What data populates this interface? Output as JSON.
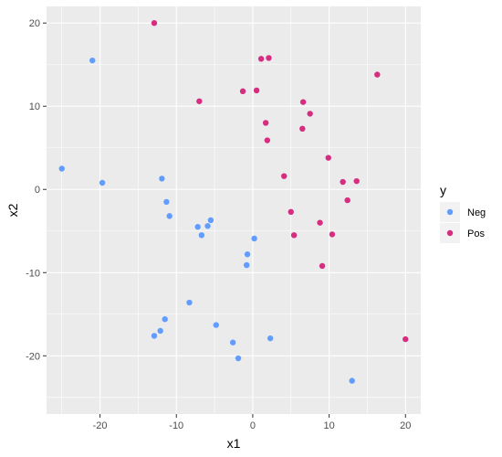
{
  "chart_data": {
    "type": "scatter",
    "xlabel": "x1",
    "ylabel": "x2",
    "xlim": [
      -27,
      22
    ],
    "ylim": [
      -27,
      22
    ],
    "xticks": [
      -20,
      -10,
      0,
      10,
      20
    ],
    "yticks": [
      -20,
      -10,
      0,
      10,
      20
    ],
    "grid": true,
    "legend": {
      "title": "y",
      "placement": "right"
    },
    "colors": {
      "Neg": "#619CFF",
      "Pos": "#D62D80",
      "panel_bg": "#EBEBEB",
      "grid": "#FFFFFF"
    },
    "series": [
      {
        "name": "Neg",
        "points": [
          [
            -25,
            2.5
          ],
          [
            -21,
            15.5
          ],
          [
            -19.7,
            0.8
          ],
          [
            -11.9,
            1.3
          ],
          [
            -11.3,
            -1.5
          ],
          [
            -10.9,
            -3.2
          ],
          [
            -7.2,
            -4.5
          ],
          [
            -6.7,
            -5.5
          ],
          [
            -5.9,
            -4.4
          ],
          [
            -5.5,
            -3.7
          ],
          [
            -0.7,
            -7.8
          ],
          [
            -0.8,
            -9.1
          ],
          [
            0.2,
            -5.9
          ],
          [
            -8.3,
            -13.6
          ],
          [
            -11.5,
            -15.6
          ],
          [
            -12.1,
            -17
          ],
          [
            -12.9,
            -17.6
          ],
          [
            -4.8,
            -16.3
          ],
          [
            -2.6,
            -18.4
          ],
          [
            -1.9,
            -20.3
          ],
          [
            2.3,
            -17.9
          ],
          [
            13,
            -23
          ]
        ]
      },
      {
        "name": "Pos",
        "points": [
          [
            -12.9,
            20
          ],
          [
            -7,
            10.6
          ],
          [
            -1.3,
            11.8
          ],
          [
            0.5,
            11.9
          ],
          [
            1.1,
            15.7
          ],
          [
            2.1,
            15.8
          ],
          [
            1.7,
            8
          ],
          [
            1.9,
            5.9
          ],
          [
            6.6,
            10.5
          ],
          [
            7.5,
            9.1
          ],
          [
            6.5,
            7.3
          ],
          [
            16.3,
            13.8
          ],
          [
            4.1,
            1.6
          ],
          [
            9.9,
            3.8
          ],
          [
            11.8,
            0.9
          ],
          [
            13.6,
            1
          ],
          [
            5,
            -2.7
          ],
          [
            12.4,
            -1.3
          ],
          [
            8.8,
            -4
          ],
          [
            5.4,
            -5.5
          ],
          [
            10.4,
            -5.4
          ],
          [
            9.1,
            -9.2
          ],
          [
            20,
            -18
          ]
        ]
      }
    ]
  }
}
